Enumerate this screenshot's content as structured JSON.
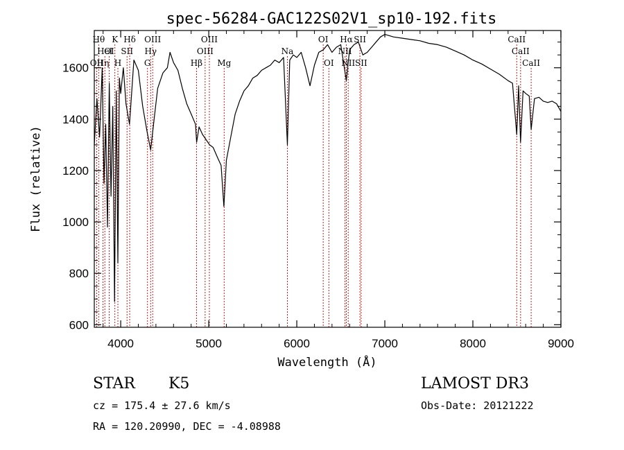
{
  "chart_data": {
    "type": "line",
    "title": "spec-56284-GAC122S02V1_sp10-192.fits",
    "xlabel": "Wavelength (Å)",
    "ylabel": "Flux (relative)",
    "xlim": [
      3700,
      9000
    ],
    "ylim": [
      590,
      1745
    ],
    "x_ticks": [
      4000,
      5000,
      6000,
      7000,
      8000,
      9000
    ],
    "x_tick_labels": [
      "4000",
      "5000",
      "6000",
      "7000",
      "8000",
      "9000"
    ],
    "y_ticks": [
      600,
      800,
      1000,
      1200,
      1400,
      1600
    ],
    "y_tick_labels": [
      "600",
      "800",
      "1000",
      "1200",
      "1400",
      "1600"
    ],
    "series": [
      {
        "name": "flux",
        "color": "#000000",
        "points": [
          [
            3700,
            1300
          ],
          [
            3730,
            1480
          ],
          [
            3760,
            1330
          ],
          [
            3790,
            1600
          ],
          [
            3810,
            1150
          ],
          [
            3830,
            1380
          ],
          [
            3850,
            980
          ],
          [
            3870,
            1540
          ],
          [
            3890,
            1100
          ],
          [
            3910,
            1450
          ],
          [
            3930,
            690
          ],
          [
            3950,
            1510
          ],
          [
            3968,
            840
          ],
          [
            3985,
            1560
          ],
          [
            4000,
            1500
          ],
          [
            4030,
            1600
          ],
          [
            4060,
            1460
          ],
          [
            4100,
            1380
          ],
          [
            4150,
            1630
          ],
          [
            4200,
            1590
          ],
          [
            4250,
            1450
          ],
          [
            4300,
            1350
          ],
          [
            4340,
            1280
          ],
          [
            4380,
            1400
          ],
          [
            4420,
            1520
          ],
          [
            4480,
            1580
          ],
          [
            4530,
            1600
          ],
          [
            4560,
            1660
          ],
          [
            4600,
            1620
          ],
          [
            4650,
            1590
          ],
          [
            4700,
            1520
          ],
          [
            4750,
            1460
          ],
          [
            4800,
            1420
          ],
          [
            4850,
            1380
          ],
          [
            4862,
            1310
          ],
          [
            4890,
            1370
          ],
          [
            4930,
            1340
          ],
          [
            4970,
            1320
          ],
          [
            5010,
            1300
          ],
          [
            5050,
            1290
          ],
          [
            5100,
            1250
          ],
          [
            5140,
            1220
          ],
          [
            5172,
            1060
          ],
          [
            5200,
            1240
          ],
          [
            5250,
            1330
          ],
          [
            5300,
            1420
          ],
          [
            5350,
            1470
          ],
          [
            5400,
            1510
          ],
          [
            5450,
            1530
          ],
          [
            5500,
            1560
          ],
          [
            5550,
            1570
          ],
          [
            5600,
            1590
          ],
          [
            5650,
            1600
          ],
          [
            5700,
            1610
          ],
          [
            5750,
            1630
          ],
          [
            5800,
            1620
          ],
          [
            5850,
            1640
          ],
          [
            5893,
            1300
          ],
          [
            5920,
            1630
          ],
          [
            5960,
            1650
          ],
          [
            6000,
            1640
          ],
          [
            6050,
            1660
          ],
          [
            6100,
            1600
          ],
          [
            6150,
            1530
          ],
          [
            6200,
            1610
          ],
          [
            6250,
            1660
          ],
          [
            6300,
            1670
          ],
          [
            6350,
            1690
          ],
          [
            6400,
            1660
          ],
          [
            6450,
            1680
          ],
          [
            6500,
            1690
          ],
          [
            6563,
            1550
          ],
          [
            6600,
            1670
          ],
          [
            6650,
            1690
          ],
          [
            6700,
            1700
          ],
          [
            6750,
            1650
          ],
          [
            6800,
            1660
          ],
          [
            6850,
            1680
          ],
          [
            6900,
            1700
          ],
          [
            6950,
            1720
          ],
          [
            7000,
            1730
          ],
          [
            7050,
            1725
          ],
          [
            7100,
            1720
          ],
          [
            7200,
            1715
          ],
          [
            7300,
            1710
          ],
          [
            7400,
            1705
          ],
          [
            7500,
            1695
          ],
          [
            7600,
            1690
          ],
          [
            7700,
            1680
          ],
          [
            7800,
            1665
          ],
          [
            7900,
            1650
          ],
          [
            8000,
            1630
          ],
          [
            8100,
            1615
          ],
          [
            8200,
            1595
          ],
          [
            8300,
            1575
          ],
          [
            8400,
            1550
          ],
          [
            8450,
            1540
          ],
          [
            8498,
            1340
          ],
          [
            8520,
            1530
          ],
          [
            8542,
            1310
          ],
          [
            8570,
            1510
          ],
          [
            8600,
            1500
          ],
          [
            8640,
            1490
          ],
          [
            8662,
            1360
          ],
          [
            8700,
            1480
          ],
          [
            8750,
            1485
          ],
          [
            8800,
            1470
          ],
          [
            8850,
            1465
          ],
          [
            8900,
            1470
          ],
          [
            8950,
            1460
          ],
          [
            9000,
            1430
          ]
        ]
      }
    ],
    "lines": [
      {
        "wavelength": 3727,
        "label": "OII",
        "row": 3
      },
      {
        "wavelength": 3750,
        "label": "Hθ",
        "row": 1
      },
      {
        "wavelength": 3798,
        "label": "Hη",
        "row": 3
      },
      {
        "wavelength": 3820,
        "label": "HeI",
        "row": 2
      },
      {
        "wavelength": 3869,
        "label": "OI",
        "row": 2
      },
      {
        "wavelength": 3934,
        "label": "K",
        "row": 1
      },
      {
        "wavelength": 3968,
        "label": "H",
        "row": 3
      },
      {
        "wavelength": 4072,
        "label": "SII",
        "row": 2
      },
      {
        "wavelength": 4102,
        "label": "Hδ",
        "row": 1
      },
      {
        "wavelength": 4304,
        "label": "G",
        "row": 3
      },
      {
        "wavelength": 4340,
        "label": "Hγ",
        "row": 2
      },
      {
        "wavelength": 4363,
        "label": "OIII",
        "row": 1
      },
      {
        "wavelength": 4861,
        "label": "Hβ",
        "row": 3
      },
      {
        "wavelength": 4959,
        "label": "OIII",
        "row": 2
      },
      {
        "wavelength": 5007,
        "label": "OIII",
        "row": 1
      },
      {
        "wavelength": 5175,
        "label": "Mg",
        "row": 3
      },
      {
        "wavelength": 5893,
        "label": "Na",
        "row": 2
      },
      {
        "wavelength": 6300,
        "label": "OI",
        "row": 1
      },
      {
        "wavelength": 6364,
        "label": "OI",
        "row": 3
      },
      {
        "wavelength": 6548,
        "label": "NII",
        "row": 2
      },
      {
        "wavelength": 6563,
        "label": "Hα",
        "row": 1
      },
      {
        "wavelength": 6584,
        "label": "NII",
        "row": 3
      },
      {
        "wavelength": 6717,
        "label": "SII",
        "row": 1
      },
      {
        "wavelength": 6731,
        "label": "SII",
        "row": 3
      },
      {
        "wavelength": 8498,
        "label": "CaII",
        "row": 1
      },
      {
        "wavelength": 8542,
        "label": "CaII",
        "row": 2
      },
      {
        "wavelength": 8662,
        "label": "CaII",
        "row": 3
      }
    ]
  },
  "info": {
    "class_label": "STAR",
    "subclass_label": "K5",
    "survey_label": "LAMOST DR3",
    "cz_text": "cz = 175.4 ± 27.6 km/s",
    "obs_date_text": "Obs-Date: 20121222",
    "coords_text": "RA = 120.20990, DEC =  -4.08988"
  }
}
